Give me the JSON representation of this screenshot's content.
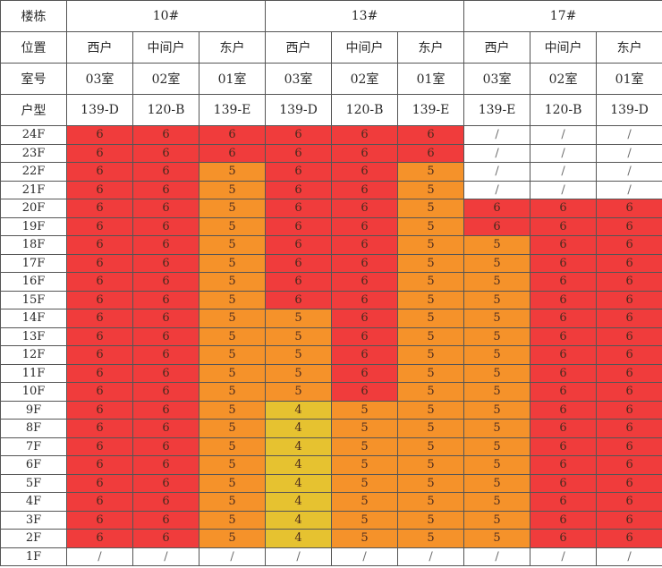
{
  "headers": {
    "building_label": "楼栋",
    "buildings": [
      "10#",
      "13#",
      "17#"
    ],
    "position_label": "位置",
    "positions": [
      "西户",
      "中间户",
      "东户",
      "西户",
      "中间户",
      "东户",
      "西户",
      "中间户",
      "东户"
    ],
    "room_label": "室号",
    "rooms": [
      "03室",
      "02室",
      "01室",
      "03室",
      "02室",
      "01室",
      "03室",
      "02室",
      "01室"
    ],
    "type_label": "户型",
    "types": [
      "139-D",
      "120-B",
      "139-E",
      "139-D",
      "120-B",
      "139-E",
      "139-E",
      "120-B",
      "139-D"
    ]
  },
  "colors": {
    "6": "#f03c3c",
    "5": "#f5922a",
    "4": "#e6c230",
    "/": "#ffffff"
  },
  "rows": [
    {
      "floor": "24F",
      "values": [
        "6",
        "6",
        "6",
        "6",
        "6",
        "6",
        "/",
        "/",
        "/"
      ]
    },
    {
      "floor": "23F",
      "values": [
        "6",
        "6",
        "6",
        "6",
        "6",
        "6",
        "/",
        "/",
        "/"
      ]
    },
    {
      "floor": "22F",
      "values": [
        "6",
        "6",
        "5",
        "6",
        "6",
        "5",
        "/",
        "/",
        "/"
      ]
    },
    {
      "floor": "21F",
      "values": [
        "6",
        "6",
        "5",
        "6",
        "6",
        "5",
        "/",
        "/",
        "/"
      ]
    },
    {
      "floor": "20F",
      "values": [
        "6",
        "6",
        "5",
        "6",
        "6",
        "5",
        "6",
        "6",
        "6"
      ]
    },
    {
      "floor": "19F",
      "values": [
        "6",
        "6",
        "5",
        "6",
        "6",
        "5",
        "6",
        "6",
        "6"
      ]
    },
    {
      "floor": "18F",
      "values": [
        "6",
        "6",
        "5",
        "6",
        "6",
        "5",
        "5",
        "6",
        "6"
      ]
    },
    {
      "floor": "17F",
      "values": [
        "6",
        "6",
        "5",
        "6",
        "6",
        "5",
        "5",
        "6",
        "6"
      ]
    },
    {
      "floor": "16F",
      "values": [
        "6",
        "6",
        "5",
        "6",
        "6",
        "5",
        "5",
        "6",
        "6"
      ]
    },
    {
      "floor": "15F",
      "values": [
        "6",
        "6",
        "5",
        "6",
        "6",
        "5",
        "5",
        "6",
        "6"
      ]
    },
    {
      "floor": "14F",
      "values": [
        "6",
        "6",
        "5",
        "5",
        "6",
        "5",
        "5",
        "6",
        "6"
      ]
    },
    {
      "floor": "13F",
      "values": [
        "6",
        "6",
        "5",
        "5",
        "6",
        "5",
        "5",
        "6",
        "6"
      ]
    },
    {
      "floor": "12F",
      "values": [
        "6",
        "6",
        "5",
        "5",
        "6",
        "5",
        "5",
        "6",
        "6"
      ]
    },
    {
      "floor": "11F",
      "values": [
        "6",
        "6",
        "5",
        "5",
        "6",
        "5",
        "5",
        "6",
        "6"
      ]
    },
    {
      "floor": "10F",
      "values": [
        "6",
        "6",
        "5",
        "5",
        "6",
        "5",
        "5",
        "6",
        "6"
      ]
    },
    {
      "floor": "9F",
      "values": [
        "6",
        "6",
        "5",
        "4",
        "5",
        "5",
        "5",
        "6",
        "6"
      ]
    },
    {
      "floor": "8F",
      "values": [
        "6",
        "6",
        "5",
        "4",
        "5",
        "5",
        "5",
        "6",
        "6"
      ]
    },
    {
      "floor": "7F",
      "values": [
        "6",
        "6",
        "5",
        "4",
        "5",
        "5",
        "5",
        "6",
        "6"
      ]
    },
    {
      "floor": "6F",
      "values": [
        "6",
        "6",
        "5",
        "4",
        "5",
        "5",
        "5",
        "6",
        "6"
      ]
    },
    {
      "floor": "5F",
      "values": [
        "6",
        "6",
        "5",
        "4",
        "5",
        "5",
        "5",
        "6",
        "6"
      ]
    },
    {
      "floor": "4F",
      "values": [
        "6",
        "6",
        "5",
        "4",
        "5",
        "5",
        "5",
        "6",
        "6"
      ]
    },
    {
      "floor": "3F",
      "values": [
        "6",
        "6",
        "5",
        "4",
        "5",
        "5",
        "5",
        "6",
        "6"
      ]
    },
    {
      "floor": "2F",
      "values": [
        "6",
        "6",
        "5",
        "4",
        "5",
        "5",
        "5",
        "6",
        "6"
      ]
    },
    {
      "floor": "1F",
      "values": [
        "/",
        "/",
        "/",
        "/",
        "/",
        "/",
        "/",
        "/",
        "/"
      ]
    }
  ]
}
